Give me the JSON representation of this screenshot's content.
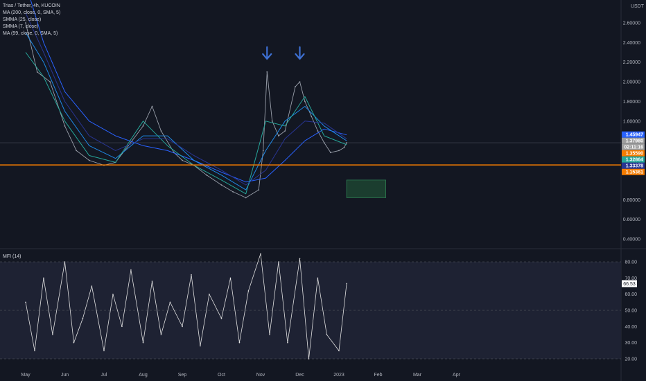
{
  "header": {
    "symbol_line": "Trias / Tether, 4h, KUCOIN",
    "indicators": [
      "MA (200, close, 0, SMA, 5)",
      "SMMA (25, close)",
      "SMMA (7, close)",
      "MA (99, close, 0, SMA, 5)"
    ]
  },
  "mfi_panel": {
    "label": "MFI (14)",
    "value_label": "66.53",
    "value": 66.53
  },
  "colors": {
    "background": "#131722",
    "price_line": "#9aa0ab",
    "ma200": "#2962ff",
    "smma25": "#1e88e5",
    "smma7": "#26a69a",
    "ma99": "#283593",
    "support_line": "#f57c00",
    "arrows": "#3d6fd1",
    "box": "#1b3d2f",
    "box_border": "#2e7d52",
    "mfi_line": "#e0e0e0",
    "mfi_band_bg": "#1e2233"
  },
  "chart_data": [
    {
      "type": "line",
      "title": "Trias / Tether, 4h, KUCOIN",
      "y_axis_unit": "USDT",
      "y_ticks": [
        "2.60000",
        "2.40000",
        "2.20000",
        "2.00000",
        "1.80000",
        "1.60000",
        "0.80000",
        "0.60000",
        "0.40000"
      ],
      "x_ticks": [
        "May",
        "Jun",
        "Jul",
        "Aug",
        "Sep",
        "Oct",
        "Nov",
        "Dec",
        "2023",
        "Feb",
        "Mar",
        "Apr"
      ],
      "ylim": [
        0.3,
        3.05
      ],
      "series": [
        {
          "name": "close",
          "x": [
            "May 1",
            "May 10",
            "May 20",
            "Jun 1",
            "Jun 10",
            "Jun 20",
            "Jul 1",
            "Jul 10",
            "Jul 20",
            "Aug 1",
            "Aug 8",
            "Aug 15",
            "Aug 25",
            "Sep 1",
            "Sep 10",
            "Sep 20",
            "Oct 1",
            "Oct 10",
            "Oct 20",
            "Oct 30",
            "Nov 3",
            "Nov 6",
            "Nov 10",
            "Nov 15",
            "Nov 20",
            "Nov 28",
            "Dec 1",
            "Dec 5",
            "Dec 10",
            "Dec 15",
            "Dec 20",
            "Dec 25",
            "Jan 1",
            "Jan 5",
            "Jan 7"
          ],
          "values": [
            2.6,
            2.1,
            2.0,
            1.55,
            1.3,
            1.2,
            1.15,
            1.18,
            1.35,
            1.55,
            1.75,
            1.5,
            1.28,
            1.2,
            1.15,
            1.05,
            0.95,
            0.88,
            0.82,
            0.9,
            1.3,
            2.1,
            1.6,
            1.45,
            1.5,
            1.95,
            2.0,
            1.8,
            1.65,
            1.5,
            1.38,
            1.28,
            1.3,
            1.33,
            1.38
          ]
        },
        {
          "name": "MA (200)",
          "x": [
            "May 1",
            "May 15",
            "Jun 1",
            "Jun 20",
            "Jul 10",
            "Aug 1",
            "Aug 20",
            "Sep 10",
            "Oct 1",
            "Oct 20",
            "Nov 5",
            "Nov 20",
            "Dec 5",
            "Dec 20",
            "Jan 7"
          ],
          "values": [
            3.0,
            2.4,
            1.9,
            1.6,
            1.45,
            1.35,
            1.3,
            1.2,
            1.08,
            0.98,
            1.02,
            1.2,
            1.4,
            1.52,
            1.46
          ]
        },
        {
          "name": "SMMA (25)",
          "x": [
            "May 1",
            "May 15",
            "Jun 1",
            "Jun 20",
            "Jul 10",
            "Aug 1",
            "Aug 20",
            "Sep 10",
            "Oct 1",
            "Oct 20",
            "Nov 5",
            "Nov 20",
            "Dec 5",
            "Dec 20",
            "Jan 7"
          ],
          "values": [
            2.5,
            2.2,
            1.7,
            1.35,
            1.22,
            1.45,
            1.45,
            1.2,
            1.05,
            0.9,
            1.3,
            1.6,
            1.75,
            1.55,
            1.4
          ]
        },
        {
          "name": "SMMA (7)",
          "x": [
            "May 1",
            "May 15",
            "Jun 1",
            "Jun 20",
            "Jul 10",
            "Aug 1",
            "Aug 20",
            "Sep 10",
            "Oct 1",
            "Oct 20",
            "Nov 5",
            "Nov 20",
            "Dec 5",
            "Dec 20",
            "Jan 7"
          ],
          "values": [
            2.3,
            2.05,
            1.6,
            1.25,
            1.18,
            1.6,
            1.35,
            1.15,
            1.0,
            0.86,
            1.6,
            1.55,
            1.85,
            1.45,
            1.36
          ]
        },
        {
          "name": "MA (99)",
          "x": [
            "May 1",
            "May 15",
            "Jun 1",
            "Jun 20",
            "Jul 10",
            "Aug 1",
            "Aug 20",
            "Sep 10",
            "Oct 1",
            "Oct 20",
            "Nov 5",
            "Nov 20",
            "Dec 5",
            "Dec 20",
            "Jan 7"
          ],
          "values": [
            2.7,
            2.3,
            1.8,
            1.45,
            1.3,
            1.42,
            1.42,
            1.25,
            1.1,
            0.95,
            1.1,
            1.42,
            1.6,
            1.58,
            1.42
          ]
        }
      ],
      "price_tags": [
        {
          "label": "1.45947",
          "value": 1.45947,
          "color": "#2962ff"
        },
        {
          "label": "1.37980",
          "value": 1.3798,
          "color": "#9e9e9e"
        },
        {
          "label": "02:11:16",
          "value": 1.31,
          "color": "#9e9e9e"
        },
        {
          "label": "1.35590",
          "value": 1.3559,
          "color": "#f57c00"
        },
        {
          "label": "1.32864",
          "value": 1.32864,
          "color": "#26a69a"
        },
        {
          "label": "1.33378",
          "value": 1.33378,
          "color": "#283593"
        },
        {
          "label": "1.15361",
          "value": 1.15361,
          "color": "#f57c00"
        }
      ],
      "horizontal_line": 1.15361,
      "target_box": {
        "x_from": "Jan 7",
        "x_to": "Feb 7",
        "y_from": 0.82,
        "y_to": 1.0
      },
      "arrows_at": [
        "Nov 6",
        "Dec 1"
      ]
    },
    {
      "type": "line",
      "title": "MFI (14)",
      "y_ticks": [
        "80.00",
        "70.00",
        "60.00",
        "50.00",
        "40.00",
        "30.00",
        "20.00"
      ],
      "ylim": [
        15,
        85
      ],
      "band": [
        20,
        80
      ],
      "midline": 50,
      "series": [
        {
          "name": "MFI (14)",
          "x": [
            "May 1",
            "May 8",
            "May 15",
            "May 22",
            "Jun 1",
            "Jun 8",
            "Jun 15",
            "Jun 22",
            "Jul 1",
            "Jul 8",
            "Jul 15",
            "Jul 22",
            "Aug 1",
            "Aug 8",
            "Aug 15",
            "Aug 22",
            "Sep 1",
            "Sep 8",
            "Sep 15",
            "Sep 22",
            "Oct 1",
            "Oct 8",
            "Oct 15",
            "Oct 22",
            "Nov 1",
            "Nov 8",
            "Nov 15",
            "Nov 22",
            "Dec 1",
            "Dec 8",
            "Dec 15",
            "Dec 22",
            "Jan 1",
            "Jan 7"
          ],
          "values": [
            55,
            25,
            70,
            35,
            80,
            30,
            45,
            65,
            25,
            60,
            40,
            75,
            30,
            68,
            35,
            55,
            40,
            72,
            28,
            60,
            45,
            70,
            30,
            62,
            85,
            35,
            80,
            30,
            82,
            20,
            70,
            35,
            25,
            66.53
          ]
        }
      ]
    }
  ]
}
